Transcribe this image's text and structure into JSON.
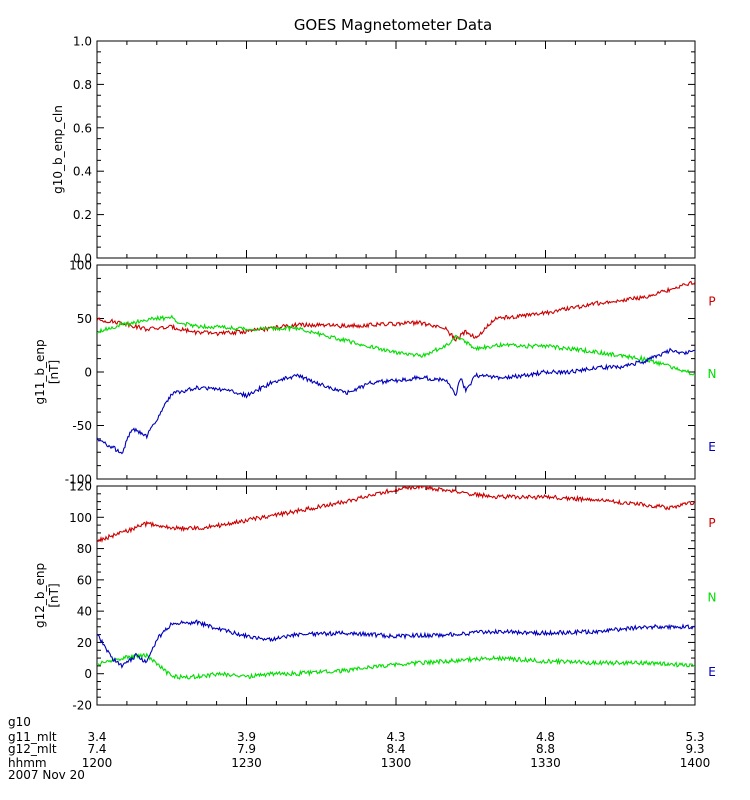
{
  "chart_data": {
    "type": "line",
    "title": "GOES Magnetometer Data",
    "colors": {
      "P": "#cc0000",
      "N": "#00dd00",
      "E": "#0000bb",
      "frame": "#000000"
    },
    "x": {
      "start": "1200",
      "end": "1400",
      "unit": "hhmm",
      "date": "2007 Nov 20"
    },
    "panels": [
      {
        "ylabel": "g10_b_enp_cln",
        "ylim": [
          0.0,
          1.0
        ],
        "ticks": [
          "0.0",
          "0.2",
          "0.4",
          "0.6",
          "0.8",
          "1.0"
        ],
        "tick_values": [
          0.0,
          0.2,
          0.4,
          0.6,
          0.8,
          1.0
        ],
        "series": []
      },
      {
        "ylabel": "g11_b_enp",
        "unit": "[nT]",
        "ylim": [
          -100,
          100
        ],
        "ticks": [
          "-100",
          "-50",
          "0",
          "50",
          "100"
        ],
        "tick_values": [
          -100,
          -50,
          0,
          50,
          100
        ],
        "series": [
          {
            "name": "P",
            "color": "#cc0000",
            "x": [
              0,
              5,
              10,
              15,
              20,
              25,
              30,
              40,
              50,
              60,
              65,
              70,
              72,
              74,
              76,
              80,
              90,
              100,
              110,
              120
            ],
            "y": [
              49,
              46,
              40,
              42,
              37,
              36,
              38,
              44,
              43,
              45,
              46,
              40,
              30,
              38,
              32,
              50,
              55,
              64,
              70,
              84
            ]
          },
          {
            "name": "N",
            "color": "#00dd00",
            "x": [
              0,
              5,
              10,
              15,
              17,
              20,
              25,
              30,
              40,
              50,
              60,
              65,
              70,
              72,
              74,
              76,
              80,
              90,
              100,
              110,
              120
            ],
            "y": [
              38,
              44,
              49,
              51,
              45,
              43,
              42,
              40,
              41,
              29,
              18,
              15,
              24,
              34,
              28,
              22,
              25,
              24,
              19,
              12,
              -2
            ]
          },
          {
            "name": "E",
            "color": "#0000bb",
            "x": [
              0,
              3,
              5,
              7,
              10,
              15,
              20,
              25,
              30,
              35,
              40,
              45,
              50,
              55,
              60,
              65,
              70,
              72,
              73,
              74,
              76,
              80,
              85,
              90,
              95,
              100,
              105,
              110,
              115,
              118,
              120
            ],
            "y": [
              -63,
              -70,
              -76,
              -53,
              -60,
              -20,
              -15,
              -16,
              -22,
              -10,
              -3,
              -12,
              -20,
              -10,
              -8,
              -5,
              -8,
              -22,
              -5,
              -18,
              -3,
              -5,
              -4,
              0,
              0,
              4,
              5,
              10,
              20,
              17,
              20
            ]
          }
        ]
      },
      {
        "ylabel": "g12_b_enp",
        "unit": "[nT]",
        "ylim": [
          -20,
          120
        ],
        "ticks": [
          "-20",
          "0",
          "20",
          "40",
          "60",
          "80",
          "100",
          "120"
        ],
        "tick_values": [
          -20,
          0,
          20,
          40,
          60,
          80,
          100,
          120
        ],
        "series": [
          {
            "name": "P",
            "color": "#cc0000",
            "x": [
              0,
              5,
              10,
              15,
              20,
              25,
              30,
              40,
              50,
              60,
              65,
              70,
              75,
              80,
              90,
              100,
              110,
              115,
              118,
              120
            ],
            "y": [
              85,
              90,
              96,
              93,
              93,
              95,
              98,
              104,
              110,
              118,
              120,
              117,
              115,
              113,
              113,
              111,
              108,
              106,
              108,
              110
            ]
          },
          {
            "name": "N",
            "color": "#00dd00",
            "x": [
              0,
              5,
              10,
              15,
              20,
              25,
              30,
              35,
              40,
              50,
              60,
              70,
              80,
              90,
              100,
              110,
              120
            ],
            "y": [
              6,
              10,
              12,
              -2,
              -2,
              0,
              -2,
              0,
              0,
              2,
              6,
              8,
              10,
              8,
              7,
              7,
              5
            ]
          },
          {
            "name": "E",
            "color": "#0000bb",
            "x": [
              0,
              3,
              5,
              8,
              10,
              12,
              15,
              20,
              25,
              30,
              35,
              40,
              50,
              60,
              70,
              80,
              90,
              100,
              110,
              120
            ],
            "y": [
              25,
              10,
              5,
              12,
              7,
              22,
              32,
              33,
              28,
              24,
              22,
              25,
              26,
              24,
              25,
              27,
              26,
              27,
              30,
              30
            ]
          }
        ]
      }
    ],
    "x_rows": [
      {
        "label": "g10",
        "values": [
          "",
          "",
          "",
          "",
          ""
        ]
      },
      {
        "label": "g11_mlt",
        "values": [
          "3.4",
          "3.9",
          "4.3",
          "4.8",
          "5.3"
        ]
      },
      {
        "label": "g12_mlt",
        "values": [
          "7.4",
          "7.9",
          "8.4",
          "8.8",
          "9.3"
        ]
      },
      {
        "label": "hhmm",
        "values": [
          "1200",
          "1230",
          "1300",
          "1330",
          "1400"
        ]
      }
    ],
    "date_label": "2007 Nov 20",
    "legend": [
      "P",
      "N",
      "E"
    ],
    "legend_placement": "right of each panel"
  }
}
